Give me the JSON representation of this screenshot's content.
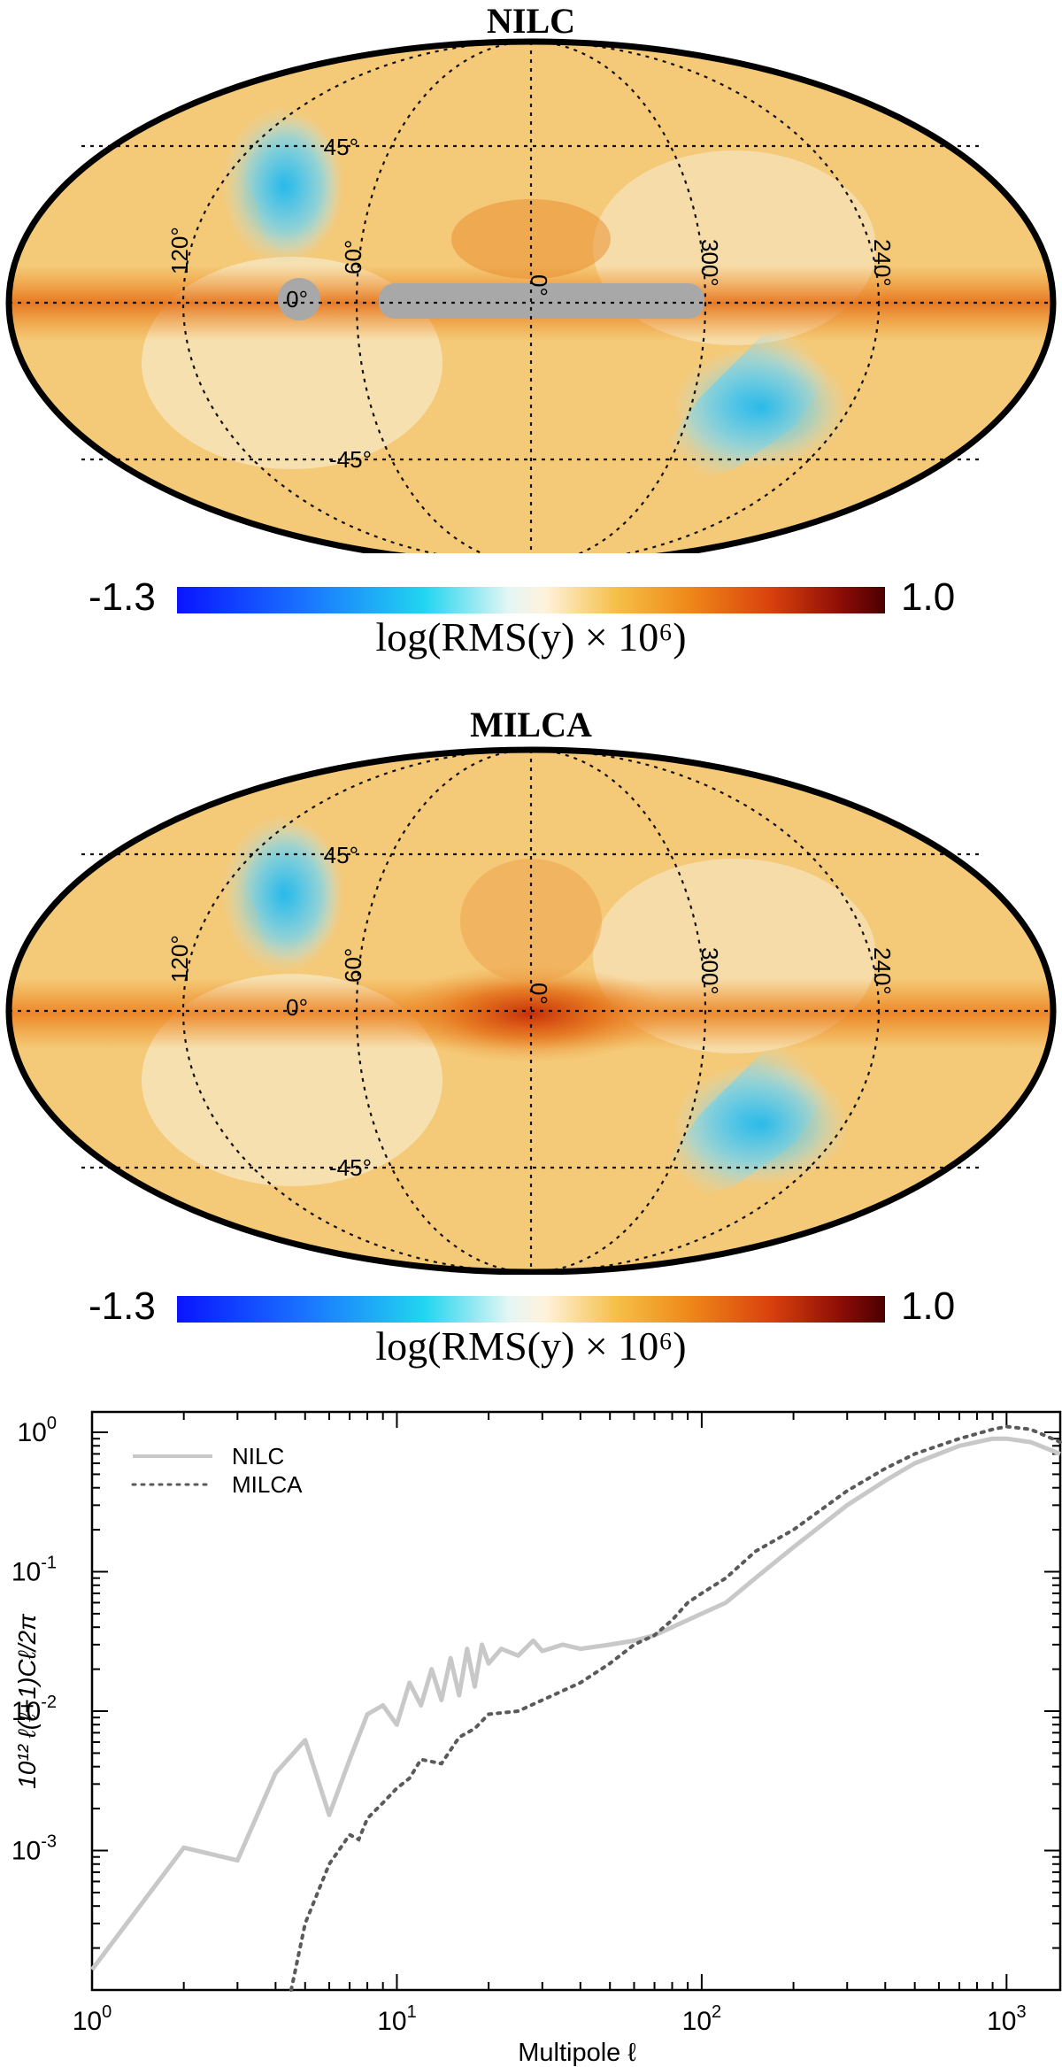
{
  "maps": [
    {
      "title": "NILC",
      "colorbar": {
        "min": "-1.3",
        "max": "1.0",
        "label": "log(RMS(y) × 10⁶)"
      },
      "grid_labels": {
        "lat_north": "45°",
        "lat_south": "-45°",
        "lon": [
          "120°",
          "60°",
          "0°",
          "300°",
          "240°"
        ],
        "equator_zero": "0°"
      },
      "has_mask": true
    },
    {
      "title": "MILCA",
      "colorbar": {
        "min": "-1.3",
        "max": "1.0",
        "label": "log(RMS(y) × 10⁶)"
      },
      "grid_labels": {
        "lat_north": "45°",
        "lat_south": "-45°",
        "lon": [
          "120°",
          "60°",
          "0°",
          "300°",
          "240°"
        ],
        "equator_zero": "0°"
      },
      "has_mask": false
    }
  ],
  "colors": {
    "map_base": "#f3c677",
    "plane": "#e8791e",
    "cold": "#3ec2e6",
    "mask": "#a8a8a8",
    "nilc_line": "#c8c8c8",
    "milca_line": "#5a5a5a"
  },
  "chart_data": {
    "type": "line",
    "scale": "log-log",
    "xlabel": "Multipole ℓ",
    "ylabel": "10¹² ℓ(ℓ+1)Cℓ/2π",
    "xlim": [
      1,
      1500
    ],
    "ylim": [
      0.0001,
      1.4
    ],
    "x_ticks": [
      {
        "base": "10",
        "exp": "0"
      },
      {
        "base": "10",
        "exp": "1"
      },
      {
        "base": "10",
        "exp": "2"
      },
      {
        "base": "10",
        "exp": "3"
      }
    ],
    "y_ticks": [
      {
        "base": "10",
        "exp": "-3"
      },
      {
        "base": "10",
        "exp": "-2"
      },
      {
        "base": "10",
        "exp": "-1"
      },
      {
        "base": "10",
        "exp": "0"
      }
    ],
    "legend": {
      "position": "top-left",
      "entries": [
        "NILC",
        "MILCA"
      ]
    },
    "series": [
      {
        "name": "NILC",
        "style": "solid",
        "x": [
          1,
          2,
          3,
          4,
          5,
          6,
          7,
          8,
          9,
          10,
          11,
          12,
          13,
          14,
          15,
          16,
          17,
          18,
          19,
          20,
          22,
          25,
          28,
          30,
          35,
          40,
          50,
          60,
          70,
          80,
          90,
          100,
          120,
          150,
          200,
          300,
          400,
          500,
          700,
          900,
          1000,
          1200,
          1500
        ],
        "values": [
          0.00014,
          0.00105,
          0.00085,
          0.0036,
          0.0062,
          0.0018,
          0.0045,
          0.0095,
          0.011,
          0.008,
          0.016,
          0.011,
          0.02,
          0.012,
          0.024,
          0.013,
          0.028,
          0.015,
          0.03,
          0.022,
          0.028,
          0.025,
          0.032,
          0.027,
          0.03,
          0.028,
          0.03,
          0.032,
          0.035,
          0.04,
          0.045,
          0.05,
          0.06,
          0.09,
          0.15,
          0.3,
          0.45,
          0.6,
          0.8,
          0.9,
          0.9,
          0.85,
          0.7
        ]
      },
      {
        "name": "MILCA",
        "style": "dotted",
        "x": [
          4.5,
          5,
          6,
          7,
          7.5,
          8,
          9,
          10,
          11,
          12,
          14,
          16,
          18,
          20,
          25,
          30,
          40,
          50,
          60,
          70,
          80,
          90,
          100,
          120,
          150,
          200,
          300,
          400,
          500,
          700,
          900,
          1000,
          1200,
          1500
        ],
        "values": [
          0.0001,
          0.0003,
          0.0008,
          0.0013,
          0.0012,
          0.0017,
          0.0022,
          0.0028,
          0.0033,
          0.0045,
          0.0042,
          0.0065,
          0.0075,
          0.0095,
          0.01,
          0.012,
          0.016,
          0.022,
          0.03,
          0.035,
          0.045,
          0.06,
          0.07,
          0.09,
          0.14,
          0.2,
          0.38,
          0.55,
          0.7,
          0.9,
          1.05,
          1.1,
          1.05,
          0.85
        ]
      }
    ]
  }
}
